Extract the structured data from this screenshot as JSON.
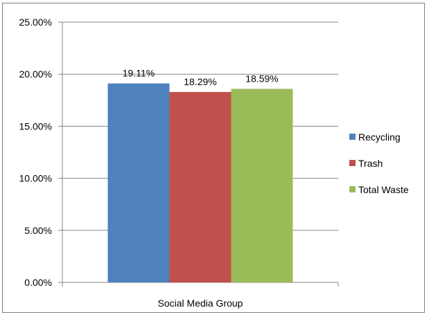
{
  "chart_data": {
    "type": "bar",
    "categories": [
      "Social Media Group"
    ],
    "series": [
      {
        "name": "Recycling",
        "values": [
          19.11
        ],
        "color": "#4f81bd"
      },
      {
        "name": "Trash",
        "values": [
          18.29
        ],
        "color": "#c0504d"
      },
      {
        "name": "Total Waste",
        "values": [
          18.59
        ],
        "color": "#9bbb59"
      }
    ],
    "data_labels": [
      "19.11%",
      "18.29%",
      "18.59%"
    ],
    "ylim": [
      0,
      25
    ],
    "yticks": [
      0,
      5,
      10,
      15,
      20,
      25
    ],
    "ytick_labels": [
      "0.00%",
      "5.00%",
      "10.00%",
      "15.00%",
      "20.00%",
      "25.00%"
    ],
    "grid": true,
    "legend_position": "right",
    "title": "",
    "xlabel": "",
    "ylabel": ""
  }
}
